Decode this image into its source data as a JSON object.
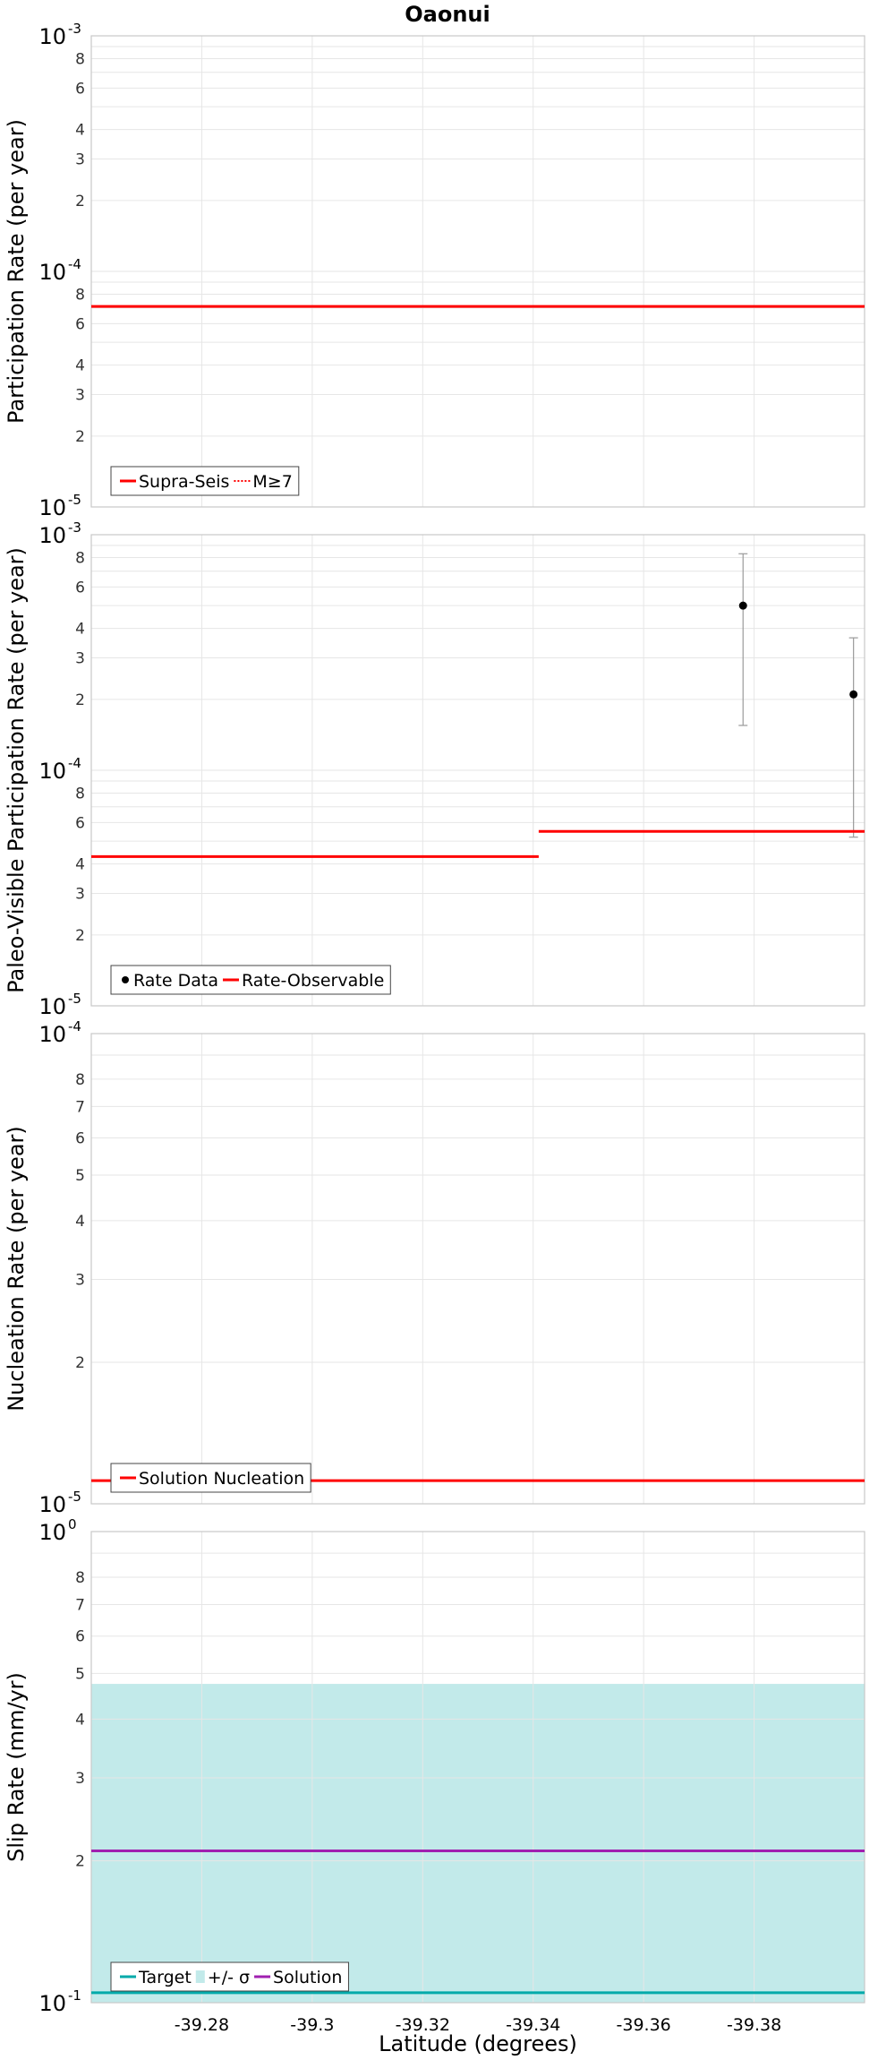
{
  "figure": {
    "title": "Oaonui",
    "xlabel": "Latitude (degrees)"
  },
  "chart_data": [
    {
      "type": "line",
      "ylabel": "Participation Rate (per year)",
      "xlim": [
        -39.26,
        -39.4
      ],
      "x_ticks": [
        "-39.28",
        "-39.3",
        "-39.32",
        "-39.34",
        "-39.36",
        "-39.38"
      ],
      "y_scale": "log",
      "ylim": [
        1e-05,
        0.001
      ],
      "grid": true,
      "legend_position": "bottom-left",
      "series": [
        {
          "name": "Supra-Seis",
          "color": "#ff0000",
          "style": "solid",
          "segments": [
            [
              -39.26,
              -39.4,
              7.1e-05
            ]
          ]
        },
        {
          "name": "M≥7",
          "color": "#ff0000",
          "style": "dotted",
          "segments": [
            [
              -39.26,
              -39.4,
              7.1e-05
            ]
          ]
        }
      ]
    },
    {
      "type": "line",
      "ylabel": "Paleo-Visible Participation Rate (per year)",
      "xlim": [
        -39.26,
        -39.4
      ],
      "x_ticks": [
        "-39.28",
        "-39.3",
        "-39.32",
        "-39.34",
        "-39.36",
        "-39.38"
      ],
      "y_scale": "log",
      "ylim": [
        1e-05,
        0.001
      ],
      "grid": true,
      "legend_position": "bottom-left",
      "series": [
        {
          "name": "Rate Data",
          "color": "#000000",
          "style": "points",
          "points": [
            {
              "x": -39.378,
              "y": 0.0005,
              "low": 0.000155,
              "high": 0.00083
            },
            {
              "x": -39.398,
              "y": 0.00021,
              "low": 5.2e-05,
              "high": 0.000365
            }
          ]
        },
        {
          "name": "Rate-Observable",
          "color": "#ff0000",
          "style": "solid",
          "segments": [
            [
              -39.26,
              -39.341,
              4.3e-05
            ],
            [
              -39.341,
              -39.4,
              5.5e-05
            ]
          ]
        }
      ]
    },
    {
      "type": "line",
      "ylabel": "Nucleation Rate (per year)",
      "xlim": [
        -39.26,
        -39.4
      ],
      "x_ticks": [
        "-39.28",
        "-39.3",
        "-39.32",
        "-39.34",
        "-39.36",
        "-39.38"
      ],
      "y_scale": "log",
      "ylim": [
        1e-05,
        0.0001
      ],
      "grid": true,
      "legend_position": "bottom-left",
      "series": [
        {
          "name": "Solution Nucleation",
          "color": "#ff0000",
          "style": "solid",
          "segments": [
            [
              -39.26,
              -39.4,
              1.12e-05
            ]
          ]
        }
      ]
    },
    {
      "type": "area",
      "ylabel": "Slip Rate (mm/yr)",
      "xlim": [
        -39.26,
        -39.4
      ],
      "x_ticks": [
        "-39.28",
        "-39.3",
        "-39.32",
        "-39.34",
        "-39.36",
        "-39.38"
      ],
      "y_scale": "log",
      "ylim": [
        0.1,
        1.0
      ],
      "grid": true,
      "legend_position": "bottom-left",
      "series": [
        {
          "name": "Target",
          "color": "#00aaaa",
          "style": "solid",
          "segments": [
            [
              -39.26,
              -39.4,
              0.105
            ]
          ]
        },
        {
          "name": "+/- σ",
          "color": "#c2eaea",
          "style": "band",
          "band": [
            -39.26,
            -39.4,
            0.1,
            0.475
          ]
        },
        {
          "name": "Solution",
          "color": "#a020b0",
          "style": "solid",
          "segments": [
            [
              -39.26,
              -39.4,
              0.21
            ]
          ]
        }
      ]
    }
  ]
}
